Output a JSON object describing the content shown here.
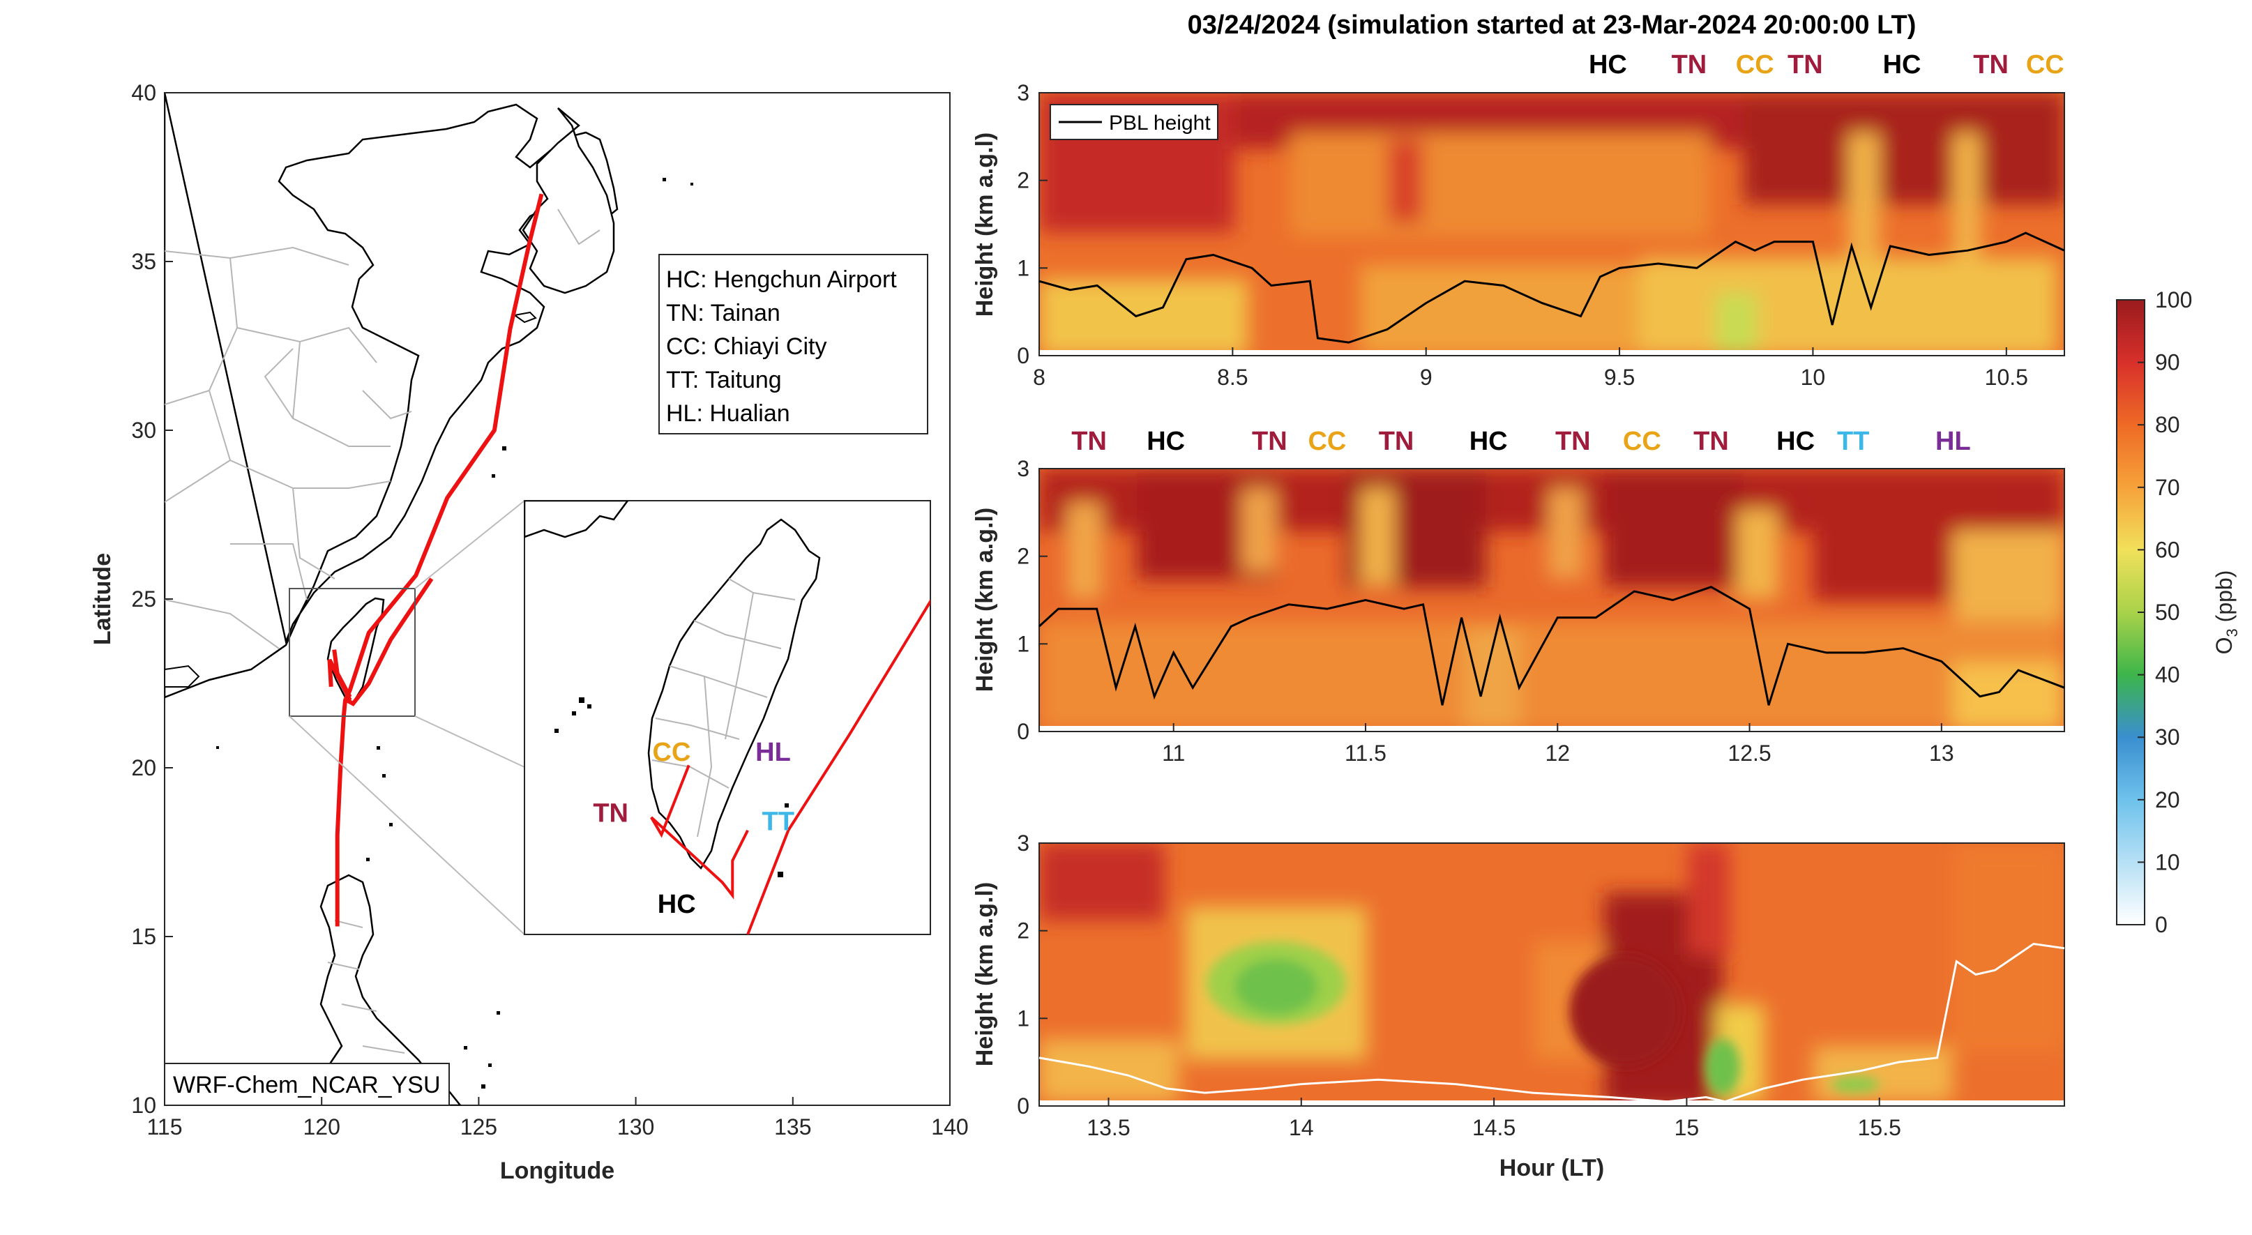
{
  "title": "03/24/2024 (simulation started at 23-Mar-2024 20:00:00 LT)",
  "colors": {
    "track": "#ee1111",
    "pbl_line": "#000000",
    "HC": "#000000",
    "TN": "#a01c3c",
    "CC": "#e8a317",
    "TT": "#3db6e8",
    "HL": "#7a2d96"
  },
  "chart_data": [
    {
      "type": "map",
      "xlabel": "Longitude",
      "ylabel": "Latitude",
      "xlim": [
        115,
        140
      ],
      "ylim": [
        10,
        40
      ],
      "xticks": [
        "115",
        "120",
        "125",
        "130",
        "135",
        "140"
      ],
      "yticks": [
        "10",
        "15",
        "20",
        "25",
        "30",
        "35",
        "40"
      ],
      "model_label": "WRF-Chem_NCAR_YSU",
      "legend": [
        {
          "code": "HC",
          "text": "HC: Hengchun Airport"
        },
        {
          "code": "TN",
          "text": "TN: Tainan"
        },
        {
          "code": "CC",
          "text": "CC: Chiayi City"
        },
        {
          "code": "TT",
          "text": "TT: Taitung"
        },
        {
          "code": "HL",
          "text": "HL: Hualian"
        }
      ],
      "flight_track": {
        "lon": [
          127.0,
          126.6,
          126.0,
          125.5,
          124.0,
          123.0,
          121.5,
          120.9,
          120.75,
          120.7,
          120.6,
          120.5,
          120.5,
          120.8,
          121.0,
          121.5,
          122.2,
          123.5
        ],
        "lat": [
          37.0,
          35.5,
          33.0,
          30.0,
          28.0,
          25.7,
          24.0,
          22.3,
          22.0,
          21.5,
          20.0,
          18.0,
          15.3,
          22.0,
          21.9,
          22.5,
          23.8,
          25.6
        ]
      },
      "taiwan_segments": [
        {
          "lon": [
            120.3,
            120.25,
            120.8,
            120.9
          ],
          "lat": [
            22.4,
            23.2,
            22.2,
            22.0
          ]
        },
        {
          "lon": [
            120.4,
            120.5,
            120.9
          ],
          "lat": [
            23.5,
            22.8,
            22.1
          ]
        }
      ],
      "inset": {
        "xlim": [
          119.0,
          123.0
        ],
        "ylim": [
          21.5,
          26.5
        ],
        "labels": [
          {
            "code": "CC",
            "text": "CC",
            "lon": 120.45,
            "lat": 23.5
          },
          {
            "code": "HL",
            "text": "HL",
            "lon": 121.45,
            "lat": 23.5
          },
          {
            "code": "TN",
            "text": "TN",
            "lon": 119.85,
            "lat": 22.8
          },
          {
            "code": "TT",
            "text": "TT",
            "lon": 121.5,
            "lat": 22.7
          },
          {
            "code": "HC",
            "text": "HC",
            "lon": 120.5,
            "lat": 21.75
          }
        ]
      }
    },
    {
      "type": "heatmap",
      "panel": 1,
      "ylabel": "Height (km a.g.l)",
      "xlim": [
        8,
        10.65
      ],
      "ylim": [
        0,
        3
      ],
      "xticks": [
        "8",
        "8.5",
        "9",
        "9.5",
        "10",
        "10.5"
      ],
      "yticks": [
        "0",
        "1",
        "2",
        "3"
      ],
      "legend": "PBL height",
      "site_labels": [
        {
          "code": "HC",
          "x": 9.47
        },
        {
          "code": "TN",
          "x": 9.68
        },
        {
          "code": "CC",
          "x": 9.85
        },
        {
          "code": "TN",
          "x": 9.98
        },
        {
          "code": "HC",
          "x": 10.23
        },
        {
          "code": "TN",
          "x": 10.46
        },
        {
          "code": "CC",
          "x": 10.6
        }
      ],
      "pbl_height": {
        "x": [
          8.0,
          8.08,
          8.15,
          8.25,
          8.32,
          8.38,
          8.45,
          8.55,
          8.6,
          8.7,
          8.72,
          8.8,
          8.9,
          9.0,
          9.1,
          9.2,
          9.3,
          9.4,
          9.45,
          9.5,
          9.6,
          9.7,
          9.8,
          9.85,
          9.9,
          10.0,
          10.05,
          10.1,
          10.15,
          10.2,
          10.3,
          10.4,
          10.5,
          10.55,
          10.65
        ],
        "y": [
          0.85,
          0.75,
          0.8,
          0.45,
          0.55,
          1.1,
          1.15,
          1.0,
          0.8,
          0.85,
          0.2,
          0.15,
          0.3,
          0.6,
          0.85,
          0.8,
          0.6,
          0.45,
          0.9,
          1.0,
          1.05,
          1.0,
          1.3,
          1.2,
          1.3,
          1.3,
          0.35,
          1.25,
          0.55,
          1.25,
          1.15,
          1.2,
          1.3,
          1.4,
          1.2
        ]
      }
    },
    {
      "type": "heatmap",
      "panel": 2,
      "ylabel": "Height (km a.g.l)",
      "xlim": [
        10.65,
        13.32
      ],
      "ylim": [
        0,
        3
      ],
      "xticks": [
        "11",
        "11.5",
        "12",
        "12.5",
        "13"
      ],
      "yticks": [
        "0",
        "1",
        "2",
        "3"
      ],
      "site_labels": [
        {
          "code": "TN",
          "x": 10.78
        },
        {
          "code": "HC",
          "x": 10.98
        },
        {
          "code": "TN",
          "x": 11.25
        },
        {
          "code": "CC",
          "x": 11.4
        },
        {
          "code": "TN",
          "x": 11.58
        },
        {
          "code": "HC",
          "x": 11.82
        },
        {
          "code": "TN",
          "x": 12.04
        },
        {
          "code": "CC",
          "x": 12.22
        },
        {
          "code": "TN",
          "x": 12.4
        },
        {
          "code": "HC",
          "x": 12.62
        },
        {
          "code": "TT",
          "x": 12.77
        },
        {
          "code": "HL",
          "x": 13.03
        }
      ],
      "pbl_height": {
        "x": [
          10.65,
          10.7,
          10.8,
          10.85,
          10.9,
          10.95,
          11.0,
          11.05,
          11.15,
          11.2,
          11.3,
          11.4,
          11.5,
          11.6,
          11.65,
          11.7,
          11.75,
          11.8,
          11.85,
          11.9,
          12.0,
          12.1,
          12.2,
          12.3,
          12.4,
          12.5,
          12.55,
          12.6,
          12.7,
          12.8,
          12.9,
          13.0,
          13.1,
          13.15,
          13.2,
          13.32
        ],
        "y": [
          1.2,
          1.4,
          1.4,
          0.5,
          1.2,
          0.4,
          0.9,
          0.5,
          1.2,
          1.3,
          1.45,
          1.4,
          1.5,
          1.4,
          1.45,
          0.3,
          1.3,
          0.4,
          1.3,
          0.5,
          1.3,
          1.3,
          1.6,
          1.5,
          1.65,
          1.4,
          0.3,
          1.0,
          0.9,
          0.9,
          0.95,
          0.8,
          0.4,
          0.45,
          0.7,
          0.5
        ]
      }
    },
    {
      "type": "heatmap",
      "panel": 3,
      "xlabel": "Hour (LT)",
      "ylabel": "Height (km a.g.l)",
      "xlim": [
        13.32,
        15.98
      ],
      "ylim": [
        0,
        3
      ],
      "xticks": [
        "13.5",
        "14",
        "14.5",
        "15",
        "15.5"
      ],
      "yticks": [
        "0",
        "1",
        "2",
        "3"
      ],
      "pbl_height": {
        "x": [
          13.32,
          13.45,
          13.55,
          13.65,
          13.75,
          13.9,
          14.0,
          14.2,
          14.4,
          14.6,
          14.8,
          14.95,
          15.05,
          15.1,
          15.2,
          15.3,
          15.45,
          15.55,
          15.65,
          15.7,
          15.75,
          15.8,
          15.85,
          15.9,
          15.98
        ],
        "y": [
          0.55,
          0.45,
          0.35,
          0.2,
          0.15,
          0.2,
          0.25,
          0.3,
          0.25,
          0.15,
          0.1,
          0.05,
          0.1,
          0.05,
          0.2,
          0.3,
          0.4,
          0.5,
          0.55,
          1.65,
          1.5,
          1.55,
          1.7,
          1.85,
          1.8
        ]
      }
    },
    {
      "type": "colorbar",
      "label_main": "O",
      "label_sub": "3",
      "label_rest": " (ppb)",
      "range": [
        0,
        100
      ],
      "ticks": [
        "0",
        "10",
        "20",
        "30",
        "40",
        "50",
        "60",
        "70",
        "80",
        "90",
        "100"
      ],
      "colormap": [
        "#ffffff",
        "#b6e0f5",
        "#3aa0da",
        "#1f78b4",
        "#3db54a",
        "#a9d24a",
        "#f1e05a",
        "#f6a23a",
        "#ee6a26",
        "#d8302b",
        "#9b1b1e"
      ]
    }
  ]
}
